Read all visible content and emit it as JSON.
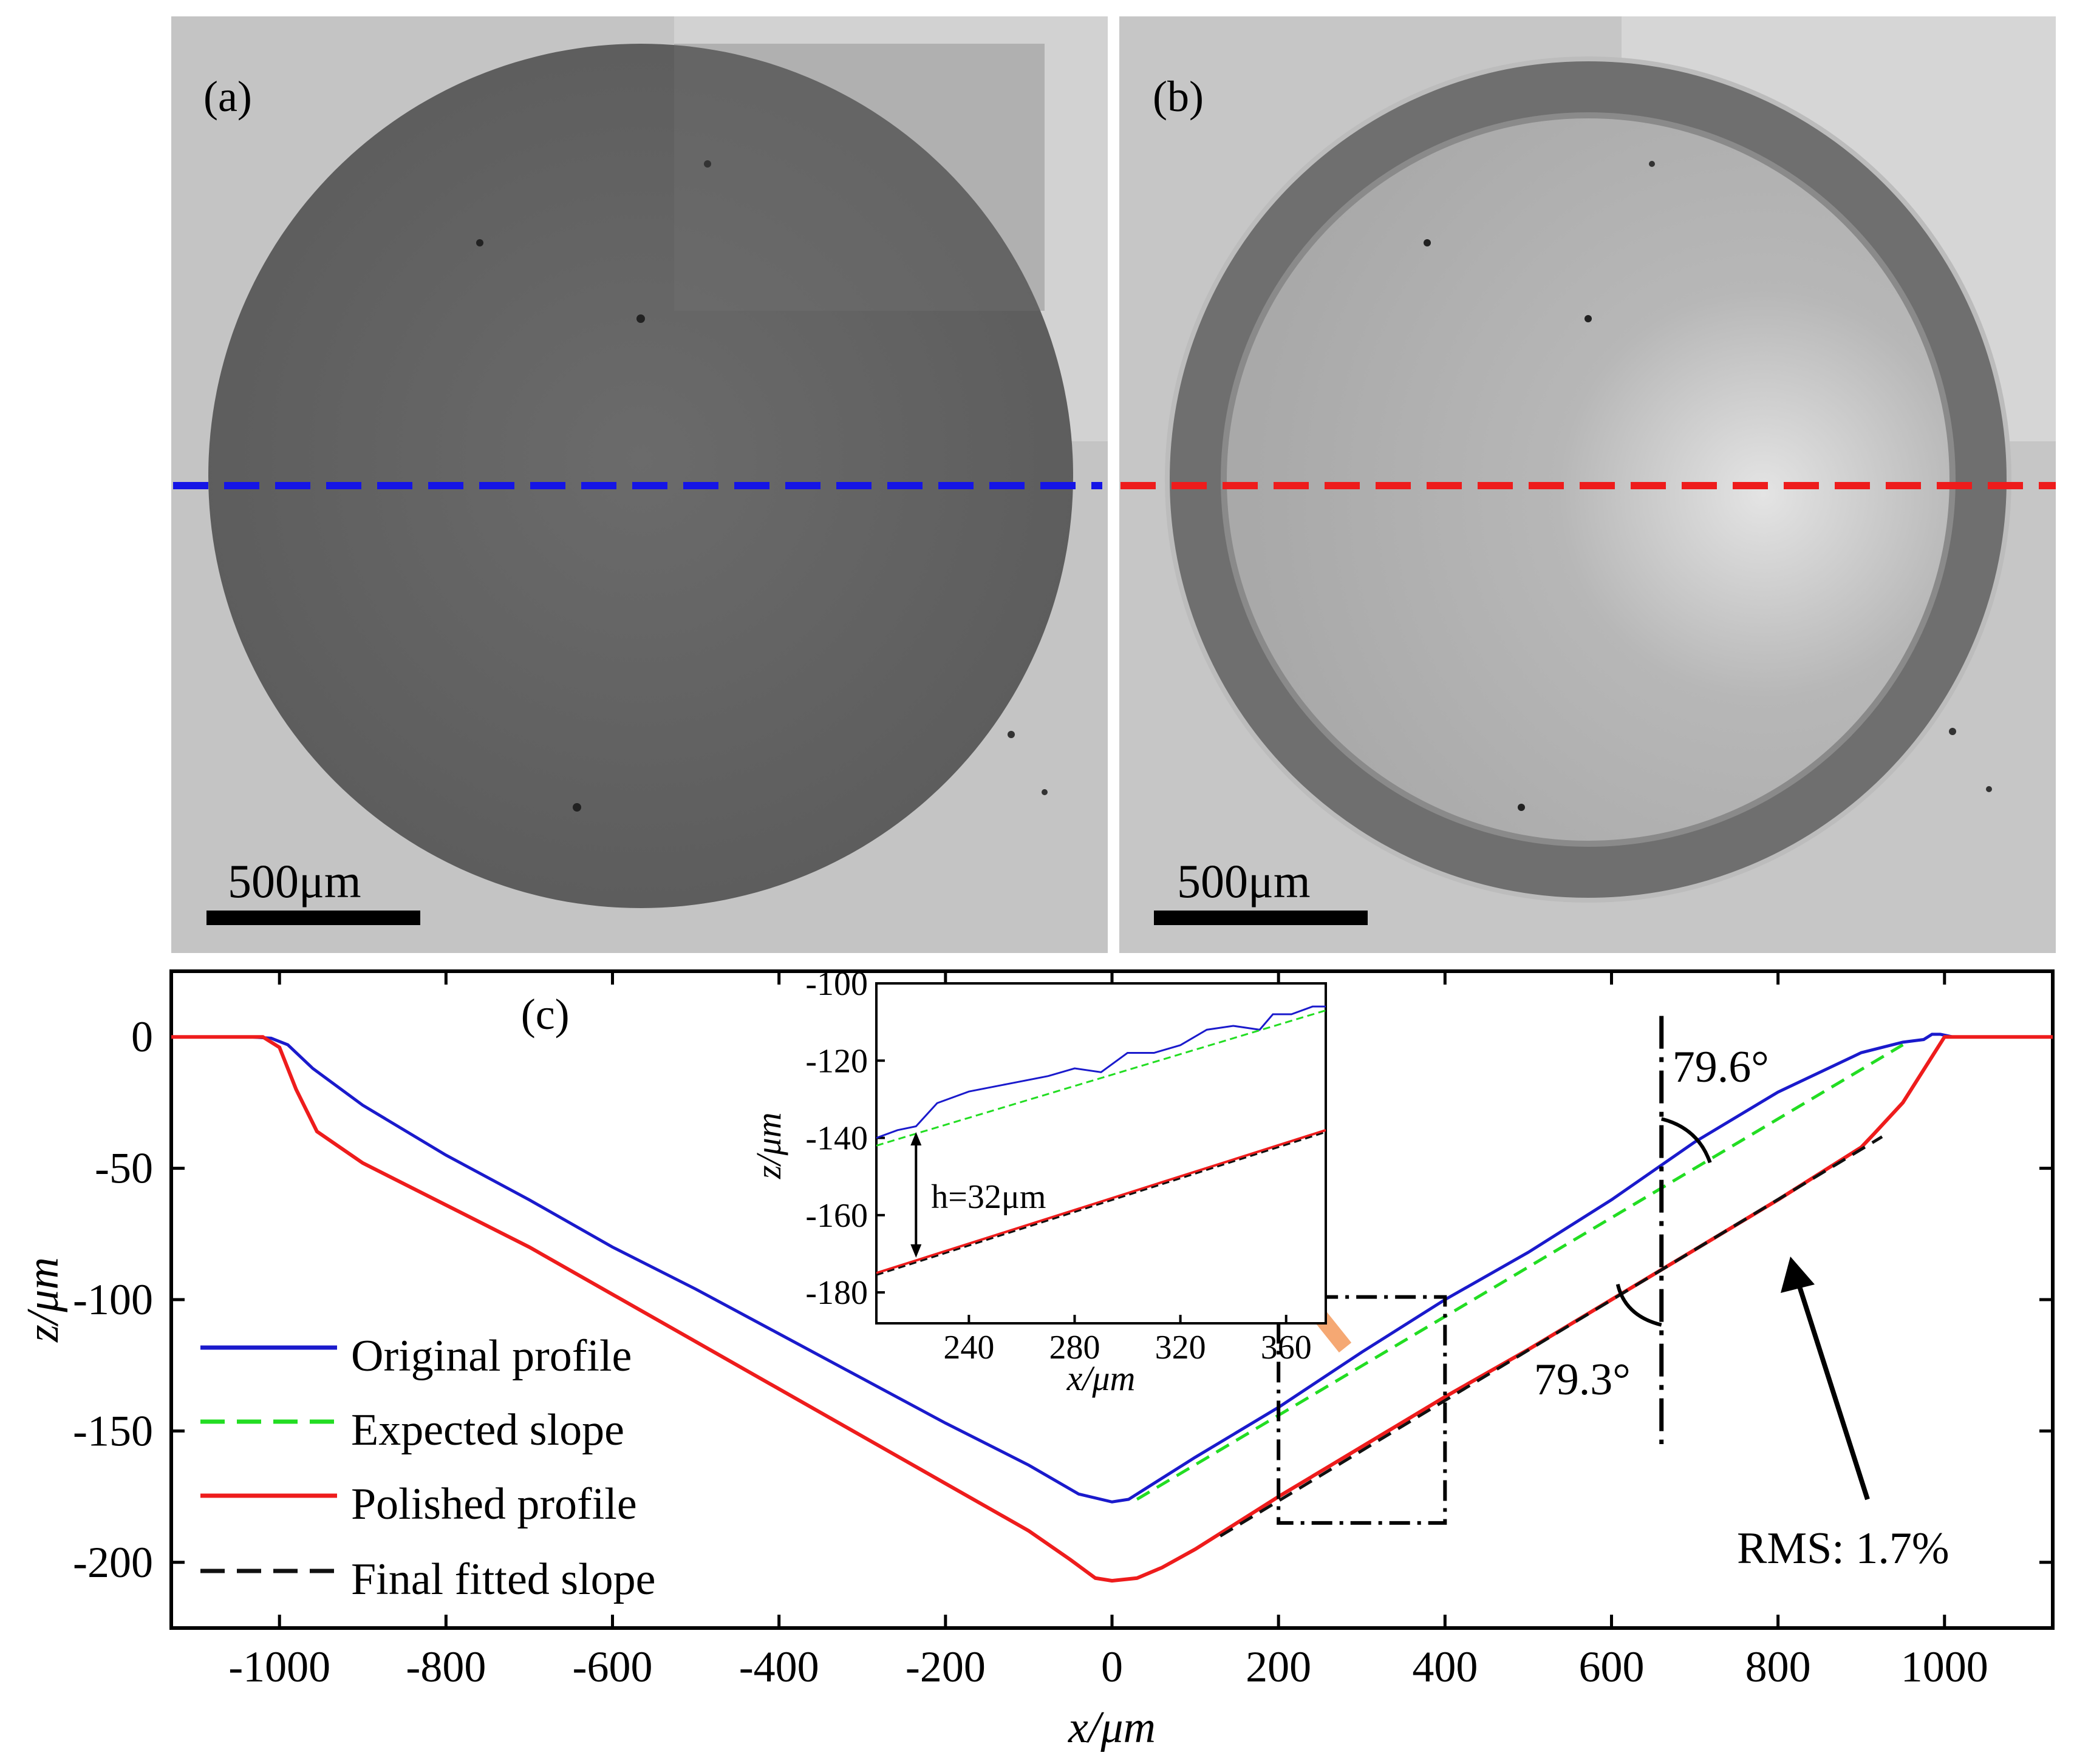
{
  "panel_a": {
    "label": "(a)",
    "scale_bar_text": "500μm",
    "line_color": "#1515e6"
  },
  "panel_b": {
    "label": "(b)",
    "scale_bar_text": "500μm",
    "line_color": "#ee1c1c"
  },
  "chart_data": {
    "type": "line",
    "panel_label": "(c)",
    "xlabel": "x/μm",
    "ylabel": "z/μm",
    "xlim": [
      -1130,
      1130
    ],
    "ylim": [
      -225,
      25
    ],
    "xticks": [
      -1000,
      -800,
      -600,
      -400,
      -200,
      0,
      200,
      400,
      600,
      800,
      1000
    ],
    "yticks": [
      0,
      -50,
      -100,
      -150,
      -200
    ],
    "series": [
      {
        "name": "Original profile",
        "color": "#1a1acc",
        "style": "solid",
        "points": [
          [
            -1130,
            0
          ],
          [
            -1035,
            0
          ],
          [
            -1010,
            -0.5
          ],
          [
            -990,
            -3
          ],
          [
            -960,
            -12
          ],
          [
            -900,
            -26
          ],
          [
            -800,
            -45
          ],
          [
            -700,
            -62
          ],
          [
            -600,
            -80
          ],
          [
            -500,
            -96
          ],
          [
            -400,
            -113
          ],
          [
            -300,
            -130
          ],
          [
            -200,
            -147
          ],
          [
            -100,
            -163
          ],
          [
            -40,
            -174
          ],
          [
            0,
            -177
          ],
          [
            20,
            -176
          ],
          [
            100,
            -160
          ],
          [
            200,
            -141
          ],
          [
            300,
            -120
          ],
          [
            400,
            -100
          ],
          [
            500,
            -82
          ],
          [
            600,
            -62
          ],
          [
            700,
            -40
          ],
          [
            800,
            -21
          ],
          [
            900,
            -6
          ],
          [
            950,
            -2
          ],
          [
            975,
            -1
          ],
          [
            985,
            1
          ],
          [
            995,
            1
          ],
          [
            1010,
            0
          ],
          [
            1130,
            0
          ]
        ]
      },
      {
        "name": "Expected slope",
        "color": "#22dd22",
        "style": "dashed",
        "points": [
          [
            30,
            -176
          ],
          [
            950,
            -3
          ]
        ]
      },
      {
        "name": "Polished profile",
        "color": "#ee1c1c",
        "style": "solid",
        "points": [
          [
            -1130,
            0
          ],
          [
            -1020,
            0
          ],
          [
            -1000,
            -4
          ],
          [
            -980,
            -20
          ],
          [
            -955,
            -36
          ],
          [
            -900,
            -48
          ],
          [
            -800,
            -64
          ],
          [
            -700,
            -80
          ],
          [
            -600,
            -98
          ],
          [
            -500,
            -116
          ],
          [
            -400,
            -134
          ],
          [
            -300,
            -152
          ],
          [
            -200,
            -170
          ],
          [
            -100,
            -188
          ],
          [
            -50,
            -199
          ],
          [
            -20,
            -206
          ],
          [
            0,
            -207
          ],
          [
            30,
            -206
          ],
          [
            60,
            -202
          ],
          [
            100,
            -195
          ],
          [
            200,
            -175
          ],
          [
            300,
            -156
          ],
          [
            400,
            -137
          ],
          [
            500,
            -119
          ],
          [
            600,
            -100
          ],
          [
            700,
            -81
          ],
          [
            800,
            -62
          ],
          [
            900,
            -42
          ],
          [
            915,
            -37
          ],
          [
            950,
            -25
          ],
          [
            980,
            -10
          ],
          [
            1000,
            0
          ],
          [
            1130,
            0
          ]
        ]
      },
      {
        "name": "Final fitted slope",
        "color": "#111111",
        "style": "dashed",
        "points": [
          [
            130,
            -190
          ],
          [
            925,
            -38
          ]
        ]
      }
    ],
    "annotations": {
      "angle_top": "79.6°",
      "angle_bottom": "79.3°",
      "rms": "RMS: 1.7%",
      "vertical_line_x": 660,
      "zoom_box": {
        "x": [
          200,
          400
        ],
        "z": [
          -185,
          -99
        ]
      }
    },
    "inset": {
      "xlabel": "x/μm",
      "ylabel": "z/μm",
      "xlim": [
        205,
        375
      ],
      "ylim": [
        -188,
        -100
      ],
      "xticks": [
        240,
        280,
        320,
        360
      ],
      "yticks": [
        -100,
        -120,
        -140,
        -160,
        -180
      ],
      "height_label": "h=32μm",
      "height_x": 220,
      "orig_points": [
        [
          205,
          -140
        ],
        [
          213,
          -138
        ],
        [
          220,
          -137
        ],
        [
          228,
          -131
        ],
        [
          240,
          -128
        ],
        [
          255,
          -126
        ],
        [
          270,
          -124
        ],
        [
          280,
          -122
        ],
        [
          290,
          -123
        ],
        [
          300,
          -118
        ],
        [
          310,
          -118
        ],
        [
          320,
          -116
        ],
        [
          330,
          -112
        ],
        [
          340,
          -111
        ],
        [
          350,
          -112
        ],
        [
          355,
          -108
        ],
        [
          362,
          -108
        ],
        [
          370,
          -106
        ],
        [
          375,
          -106
        ]
      ],
      "expected_line": [
        [
          205,
          -142
        ],
        [
          375,
          -107
        ]
      ],
      "polished_line": [
        [
          205,
          -175
        ],
        [
          375,
          -138
        ]
      ],
      "fitted_line": [
        [
          205,
          -175.5
        ],
        [
          375,
          -138.5
        ]
      ]
    }
  }
}
